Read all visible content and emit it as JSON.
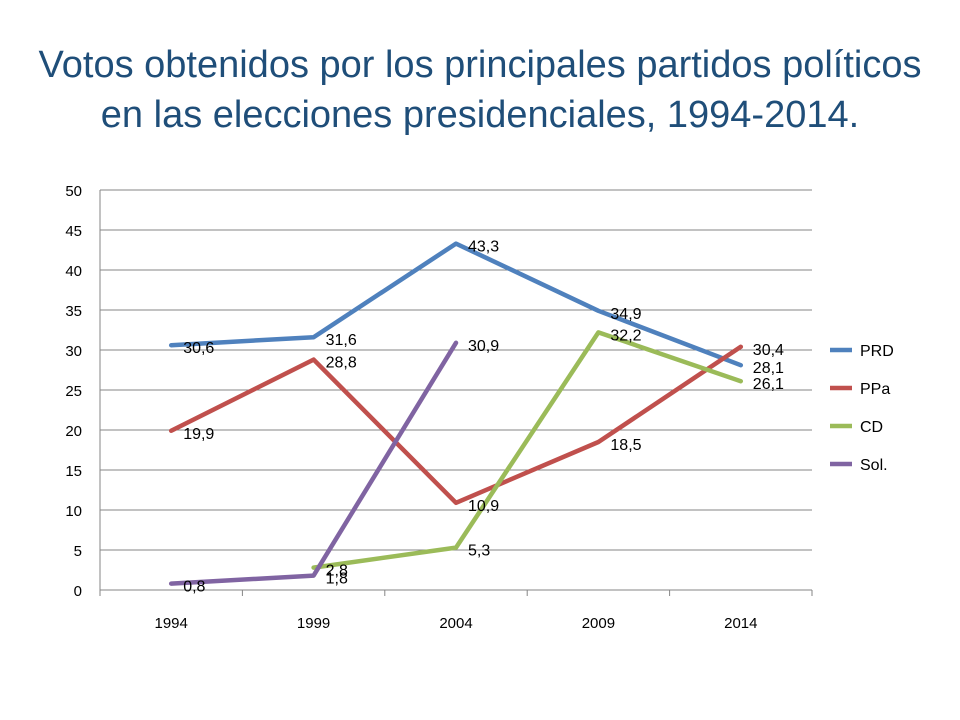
{
  "title_line1": "Votos obtenidos por los principales partidos políticos",
  "title_line2": "en las elecciones presidenciales, 1994-2014.",
  "chart_data": {
    "type": "line",
    "title": "Votos obtenidos por los principales partidos políticos en las elecciones presidenciales, 1994-2014.",
    "categories": [
      "1994",
      "1999",
      "2004",
      "2009",
      "2014"
    ],
    "ylim": [
      0,
      50
    ],
    "yticks": [
      0,
      5,
      10,
      15,
      20,
      25,
      30,
      35,
      40,
      45,
      50
    ],
    "grid": true,
    "legend": "right",
    "xlabel": "",
    "ylabel": "",
    "series": [
      {
        "name": "PRD",
        "color": "#4f81bd",
        "values": [
          30.6,
          31.6,
          43.3,
          34.9,
          28.1
        ],
        "labels": [
          "30,6",
          "31,6",
          "43,3",
          "34,9",
          "28,1"
        ]
      },
      {
        "name": "PPa",
        "color": "#c0504d",
        "values": [
          19.9,
          28.8,
          10.9,
          18.5,
          30.4
        ],
        "labels": [
          "19,9",
          "28,8",
          "10,9",
          "18,5",
          "30,4"
        ]
      },
      {
        "name": "CD",
        "color": "#9bbb59",
        "values": [
          null,
          2.8,
          5.3,
          32.2,
          26.1
        ],
        "labels": [
          "",
          "2,8",
          "5,3",
          "32,2",
          "26,1"
        ]
      },
      {
        "name": "Sol.",
        "color": "#8064a2",
        "values": [
          0.8,
          1.8,
          30.9,
          null,
          null
        ],
        "labels": [
          "0,8",
          "1,8",
          "30,9",
          "",
          ""
        ]
      }
    ]
  }
}
